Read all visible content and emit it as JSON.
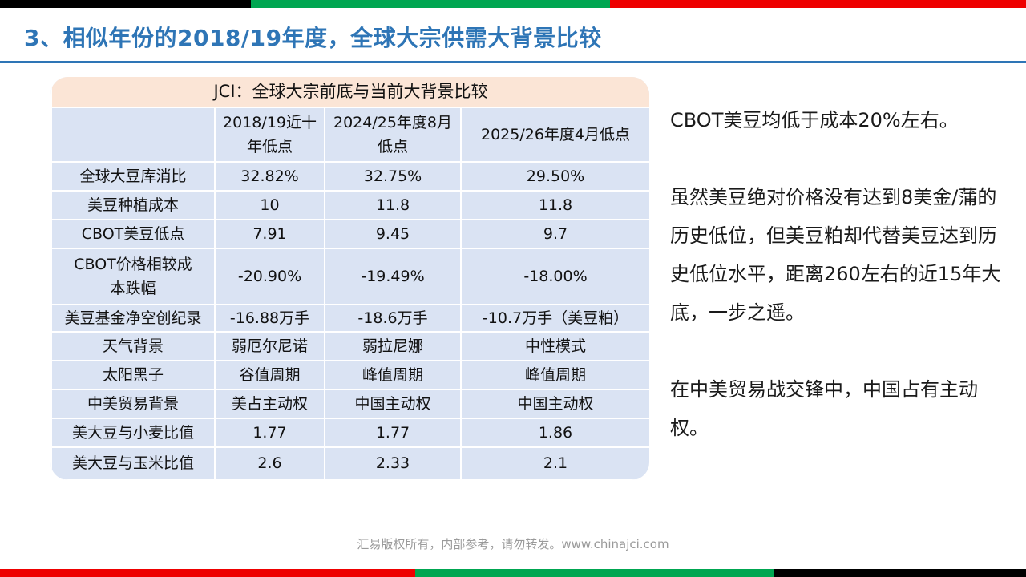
{
  "colors": {
    "title": "#2e75b6",
    "table_header_bg": "#fbe5d6",
    "table_body_bg": "#dae3f3",
    "bar_black": "#000000",
    "bar_green": "#00a651",
    "bar_red": "#ee0000"
  },
  "slide": {
    "title": "3、相似年份的2018/19年度，全球大宗供需大背景比较"
  },
  "table": {
    "title": "JCI：全球大宗前底与当前大背景比较",
    "columns": [
      "",
      "2018/19近十年低点",
      "2024/25年度8月低点",
      "2025/26年度4月低点"
    ],
    "rows": [
      [
        "全球大豆库消比",
        "32.82%",
        "32.75%",
        "29.50%"
      ],
      [
        "美豆种植成本",
        "10",
        "11.8",
        "11.8"
      ],
      [
        "CBOT美豆低点",
        "7.91",
        "9.45",
        "9.7"
      ],
      [
        "CBOT价格相较成本跌幅",
        "-20.90%",
        "-19.49%",
        "-18.00%"
      ],
      [
        "美豆基金净空创纪录",
        "-16.88万手",
        "-18.6万手",
        "-10.7万手（美豆粕）"
      ],
      [
        "天气背景",
        "弱厄尔尼诺",
        "弱拉尼娜",
        "中性模式"
      ],
      [
        "太阳黑子",
        "谷值周期",
        "峰值周期",
        "峰值周期"
      ],
      [
        "中美贸易背景",
        "美占主动权",
        "中国主动权",
        "中国主动权"
      ],
      [
        "美大豆与小麦比值",
        "1.77",
        "1.77",
        "1.86"
      ],
      [
        "美大豆与玉米比值",
        "2.6",
        "2.33",
        "2.1"
      ]
    ]
  },
  "side": {
    "p1": "CBOT美豆均低于成本20%左右。",
    "p2": "虽然美豆绝对价格没有达到8美金/蒲的历史低位，但美豆粕却代替美豆达到历史低位水平，距离260左右的近15年大底，一步之遥。",
    "p3": "在中美贸易战交锋中，中国占有主动权。"
  },
  "footer": "汇易版权所有，内部参考，请勿转发。www.chinajci.com"
}
